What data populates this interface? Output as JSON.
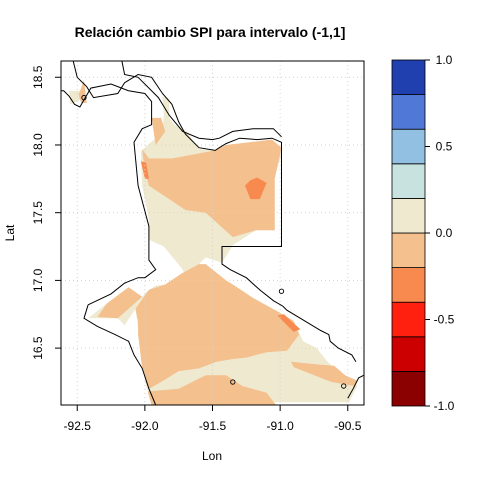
{
  "chart_data": {
    "type": "heatmap",
    "title": "Relación cambio SPI para intervalo (-1,1]",
    "xlabel": "Lon",
    "ylabel": "Lat",
    "xlim": [
      -92.62,
      -90.38
    ],
    "ylim": [
      16.08,
      18.62
    ],
    "x_ticks": [
      "-92.5",
      "-92.0",
      "-91.5",
      "-91.0",
      "-90.5"
    ],
    "y_ticks": [
      "16.5",
      "17.0",
      "17.5",
      "18.0",
      "18.5"
    ],
    "grid": true,
    "colorbar": {
      "tick_labels": [
        "-1.0",
        "-0.5",
        "0.0",
        "0.5",
        "1.0"
      ],
      "levels": [
        -1.0,
        -0.75,
        -0.5,
        -0.25,
        0.0,
        0.25,
        0.5,
        0.75,
        1.0
      ],
      "colors": [
        "#8b0000",
        "#cc0000",
        "#ff2010",
        "#f88a50",
        "#f3c08e",
        "#efe9d0",
        "#c8e2e0",
        "#92c0e3",
        "#5078d6",
        "#2040b0"
      ]
    },
    "regions": [
      {
        "level": 0.125,
        "color": "#efe9d0",
        "points": [
          [
            -92.56,
            18.4
          ],
          [
            -92.46,
            18.4
          ],
          [
            -92.48,
            18.33
          ],
          [
            -92.55,
            18.3
          ]
        ]
      },
      {
        "level": -0.125,
        "color": "#f3c08e",
        "points": [
          [
            -92.49,
            18.37
          ],
          [
            -92.47,
            18.31
          ],
          [
            -92.43,
            18.31
          ],
          [
            -92.45,
            18.48
          ]
        ]
      },
      {
        "level": 0.125,
        "color": "#efe9d0",
        "points": [
          [
            -91.87,
            18.36
          ],
          [
            -91.82,
            18.34
          ],
          [
            -91.82,
            18.2
          ],
          [
            -91.78,
            18.15
          ],
          [
            -91.69,
            18.1
          ],
          [
            -91.6,
            17.97
          ],
          [
            -91.48,
            17.96
          ],
          [
            -91.43,
            17.97
          ],
          [
            -91.4,
            18.0
          ],
          [
            -91.06,
            18.04
          ],
          [
            -90.99,
            17.98
          ],
          [
            -90.99,
            17.92
          ],
          [
            -91.04,
            17.78
          ],
          [
            -91.04,
            17.65
          ],
          [
            -91.04,
            17.37
          ],
          [
            -91.18,
            17.37
          ],
          [
            -91.35,
            17.26
          ],
          [
            -91.43,
            17.13
          ],
          [
            -91.55,
            17.17
          ],
          [
            -91.6,
            17.12
          ],
          [
            -91.71,
            17.05
          ],
          [
            -91.72,
            17.08
          ],
          [
            -91.86,
            17.25
          ],
          [
            -91.97,
            17.3
          ],
          [
            -91.97,
            17.45
          ],
          [
            -92.02,
            17.7
          ],
          [
            -92.03,
            17.95
          ],
          [
            -91.98,
            18.0
          ],
          [
            -91.92,
            18.05
          ],
          [
            -91.87,
            18.12
          ],
          [
            -91.86,
            18.22
          ]
        ]
      },
      {
        "level": -0.125,
        "color": "#f3c08e",
        "points": [
          [
            -91.95,
            18.2
          ],
          [
            -91.88,
            18.2
          ],
          [
            -91.85,
            18.1
          ],
          [
            -91.92,
            18.0
          ]
        ]
      },
      {
        "level": -0.125,
        "color": "#f3c08e",
        "points": [
          [
            -92.02,
            17.97
          ],
          [
            -91.97,
            17.9
          ],
          [
            -91.8,
            17.9
          ],
          [
            -91.48,
            17.96
          ],
          [
            -91.4,
            18.0
          ],
          [
            -91.06,
            18.04
          ],
          [
            -90.99,
            17.98
          ],
          [
            -91.04,
            17.75
          ],
          [
            -91.04,
            17.37
          ],
          [
            -91.18,
            17.37
          ],
          [
            -91.35,
            17.32
          ],
          [
            -91.55,
            17.5
          ],
          [
            -91.7,
            17.52
          ],
          [
            -91.82,
            17.6
          ],
          [
            -91.97,
            17.7
          ],
          [
            -92.0,
            17.8
          ]
        ]
      },
      {
        "level": -0.375,
        "color": "#f88a50",
        "points": [
          [
            -92.03,
            17.88
          ],
          [
            -92.0,
            17.75
          ],
          [
            -91.97,
            17.75
          ],
          [
            -91.99,
            17.87
          ]
        ]
      },
      {
        "level": -0.375,
        "color": "#f88a50",
        "points": [
          [
            -91.22,
            17.74
          ],
          [
            -91.17,
            17.76
          ],
          [
            -91.1,
            17.72
          ],
          [
            -91.15,
            17.6
          ],
          [
            -91.22,
            17.6
          ],
          [
            -91.26,
            17.7
          ]
        ]
      },
      {
        "level": 0.125,
        "color": "#efe9d0",
        "points": [
          [
            -92.07,
            16.79
          ],
          [
            -92.02,
            16.88
          ],
          [
            -91.97,
            16.93
          ],
          [
            -91.92,
            16.96
          ],
          [
            -91.85,
            16.97
          ],
          [
            -91.88,
            16.88
          ],
          [
            -91.83,
            16.82
          ],
          [
            -91.75,
            16.86
          ],
          [
            -91.7,
            16.92
          ],
          [
            -91.55,
            16.95
          ],
          [
            -91.45,
            16.96
          ],
          [
            -91.35,
            16.97
          ],
          [
            -91.2,
            16.87
          ],
          [
            -91.0,
            16.76
          ],
          [
            -90.9,
            16.7
          ],
          [
            -90.83,
            16.55
          ],
          [
            -90.73,
            16.5
          ],
          [
            -90.65,
            16.4
          ],
          [
            -90.53,
            16.29
          ],
          [
            -90.43,
            16.22
          ],
          [
            -90.49,
            16.1
          ],
          [
            -90.95,
            16.1
          ],
          [
            -91.75,
            16.1
          ],
          [
            -91.95,
            16.1
          ],
          [
            -92.0,
            16.25
          ],
          [
            -92.0,
            16.45
          ],
          [
            -92.05,
            16.65
          ]
        ]
      },
      {
        "level": 0.125,
        "color": "#efe9d0",
        "points": [
          [
            -92.42,
            16.72
          ],
          [
            -92.28,
            16.83
          ],
          [
            -92.15,
            16.86
          ],
          [
            -92.02,
            16.88
          ],
          [
            -92.07,
            16.79
          ],
          [
            -92.15,
            16.67
          ],
          [
            -92.2,
            16.72
          ],
          [
            -92.35,
            16.72
          ]
        ]
      },
      {
        "level": -0.125,
        "color": "#f3c08e",
        "points": [
          [
            -92.28,
            16.83
          ],
          [
            -92.12,
            16.95
          ],
          [
            -92.02,
            16.88
          ],
          [
            -92.2,
            16.72
          ],
          [
            -92.35,
            16.73
          ]
        ]
      },
      {
        "level": -0.125,
        "color": "#f3c08e",
        "points": [
          [
            -92.07,
            16.79
          ],
          [
            -91.97,
            16.93
          ],
          [
            -91.85,
            16.97
          ],
          [
            -91.73,
            17.05
          ],
          [
            -91.6,
            17.12
          ],
          [
            -91.55,
            17.12
          ],
          [
            -91.4,
            17.0
          ],
          [
            -91.35,
            16.97
          ],
          [
            -91.2,
            16.87
          ],
          [
            -91.0,
            16.76
          ],
          [
            -90.9,
            16.7
          ],
          [
            -90.86,
            16.6
          ],
          [
            -90.95,
            16.48
          ],
          [
            -91.1,
            16.47
          ],
          [
            -91.25,
            16.43
          ],
          [
            -91.35,
            16.42
          ],
          [
            -91.47,
            16.4
          ],
          [
            -91.6,
            16.35
          ],
          [
            -91.75,
            16.33
          ],
          [
            -91.88,
            16.25
          ],
          [
            -91.97,
            16.2
          ],
          [
            -92.02,
            16.35
          ],
          [
            -92.05,
            16.6
          ],
          [
            -92.05,
            16.7
          ]
        ]
      },
      {
        "level": -0.125,
        "color": "#f3c08e",
        "points": [
          [
            -91.98,
            16.18
          ],
          [
            -91.75,
            16.2
          ],
          [
            -91.55,
            16.3
          ],
          [
            -91.4,
            16.3
          ],
          [
            -91.28,
            16.22
          ],
          [
            -91.1,
            16.17
          ],
          [
            -91.03,
            16.08
          ],
          [
            -91.95,
            16.08
          ]
        ]
      },
      {
        "level": -0.125,
        "color": "#f3c08e",
        "points": [
          [
            -90.92,
            16.4
          ],
          [
            -90.73,
            16.38
          ],
          [
            -90.6,
            16.37
          ],
          [
            -90.52,
            16.3
          ],
          [
            -90.43,
            16.26
          ],
          [
            -90.45,
            16.22
          ],
          [
            -90.62,
            16.25
          ],
          [
            -90.8,
            16.32
          ],
          [
            -90.9,
            16.36
          ]
        ]
      },
      {
        "level": -0.375,
        "color": "#f88a50",
        "points": [
          [
            -91.02,
            16.74
          ],
          [
            -90.98,
            16.7
          ],
          [
            -90.9,
            16.62
          ],
          [
            -90.85,
            16.64
          ],
          [
            -90.92,
            16.7
          ],
          [
            -90.97,
            16.75
          ]
        ]
      }
    ],
    "boundary": [
      [
        [
          -92.53,
          18.62
        ],
        [
          -92.5,
          18.5
        ],
        [
          -92.45,
          18.45
        ],
        [
          -92.43,
          18.43
        ],
        [
          -92.38,
          18.35
        ],
        [
          -92.2,
          18.38
        ],
        [
          -92.15,
          18.46
        ],
        [
          -92.05,
          18.52
        ],
        [
          -91.95,
          18.5
        ],
        [
          -91.87,
          18.38
        ],
        [
          -91.8,
          18.3
        ],
        [
          -91.75,
          18.17
        ],
        [
          -91.7,
          18.08
        ],
        [
          -91.6,
          17.98
        ],
        [
          -91.48,
          17.96
        ],
        [
          -91.45,
          17.98
        ],
        [
          -91.4,
          18.01
        ],
        [
          -91.3,
          18.05
        ],
        [
          -91.17,
          18.04
        ],
        [
          -91.06,
          18.05
        ],
        [
          -90.99,
          18.02
        ],
        [
          -90.99,
          17.25
        ],
        [
          -91.43,
          17.25
        ],
        [
          -91.43,
          17.12
        ],
        [
          -91.37,
          17.08
        ],
        [
          -91.25,
          17.02
        ],
        [
          -91.15,
          16.93
        ],
        [
          -91.05,
          16.85
        ],
        [
          -90.98,
          16.81
        ],
        [
          -90.95,
          16.78
        ],
        [
          -90.85,
          16.72
        ],
        [
          -90.7,
          16.63
        ],
        [
          -90.64,
          16.6
        ],
        [
          -90.63,
          16.55
        ],
        [
          -90.57,
          16.5
        ],
        [
          -90.47,
          16.45
        ],
        [
          -90.44,
          16.4
        ]
      ],
      [
        [
          -92.17,
          18.62
        ],
        [
          -92.15,
          18.52
        ],
        [
          -92.05,
          18.5
        ],
        [
          -91.9,
          18.35
        ],
        [
          -91.82,
          18.22
        ],
        [
          -91.72,
          18.1
        ],
        [
          -91.6,
          18.05
        ],
        [
          -91.5,
          18.04
        ],
        [
          -91.45,
          18.05
        ],
        [
          -91.35,
          18.1
        ],
        [
          -91.2,
          18.12
        ],
        [
          -91.05,
          18.12
        ],
        [
          -90.99,
          18.06
        ]
      ],
      [
        [
          -92.42,
          16.82
        ],
        [
          -92.25,
          16.9
        ],
        [
          -92.15,
          16.98
        ],
        [
          -92.05,
          17.02
        ],
        [
          -92.0,
          17.02
        ],
        [
          -91.92,
          17.08
        ],
        [
          -91.97,
          17.15
        ],
        [
          -91.97,
          17.4
        ],
        [
          -92.05,
          17.7
        ],
        [
          -92.08,
          18.02
        ],
        [
          -92.02,
          18.12
        ],
        [
          -91.95,
          18.15
        ],
        [
          -91.95,
          18.32
        ],
        [
          -92.0,
          18.38
        ],
        [
          -92.12,
          18.4
        ],
        [
          -92.25,
          18.45
        ],
        [
          -92.4,
          18.42
        ],
        [
          -92.48,
          18.28
        ],
        [
          -92.52,
          18.3
        ],
        [
          -92.56,
          18.36
        ],
        [
          -92.6,
          18.4
        ],
        [
          -92.62,
          18.4
        ]
      ],
      [
        [
          -92.42,
          16.82
        ],
        [
          -92.45,
          16.72
        ],
        [
          -92.35,
          16.66
        ],
        [
          -92.22,
          16.6
        ],
        [
          -92.12,
          16.55
        ],
        [
          -92.08,
          16.45
        ],
        [
          -92.02,
          16.35
        ],
        [
          -91.97,
          16.2
        ],
        [
          -91.92,
          16.08
        ]
      ],
      [
        [
          -90.5,
          16.13
        ],
        [
          -90.46,
          16.2
        ],
        [
          -90.42,
          16.28
        ],
        [
          -90.38,
          16.3
        ]
      ]
    ],
    "markers": [
      {
        "x": -90.99,
        "y": 16.92,
        "shape": "circle"
      },
      {
        "x": -91.35,
        "y": 16.25,
        "shape": "circle"
      },
      {
        "x": -90.53,
        "y": 16.22,
        "shape": "circle"
      },
      {
        "x": -92.45,
        "y": 18.35,
        "shape": "circle"
      }
    ]
  }
}
